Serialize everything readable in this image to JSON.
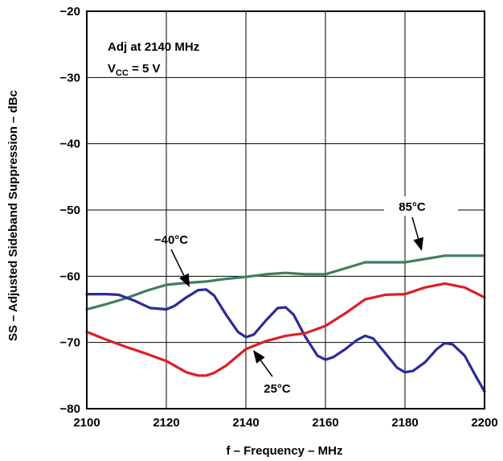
{
  "chart_data": {
    "type": "line",
    "xlabel": "f – Frequency – MHz",
    "ylabel": "SS – Adjusted Sideband Suppression – dBc",
    "xlim": [
      2100,
      2200
    ],
    "ylim": [
      -80,
      -20
    ],
    "x_ticks": [
      "2100",
      "2120",
      "2140",
      "2160",
      "2180",
      "2200"
    ],
    "y_ticks": [
      "−20",
      "−30",
      "−40",
      "−50",
      "−60",
      "−70",
      "−80"
    ],
    "grid": true,
    "annotation": {
      "line1": "Adj at 2140 MHz",
      "line2_prefix": "V",
      "line2_sub": "CC",
      "line2_suffix": " = 5 V"
    },
    "series": [
      {
        "name": "85°C",
        "color": "#3f7f5a",
        "x": [
          2100,
          2105,
          2110,
          2115,
          2120,
          2125,
          2130,
          2135,
          2140,
          2145,
          2150,
          2155,
          2160,
          2165,
          2170,
          2175,
          2180,
          2185,
          2190,
          2195,
          2200
        ],
        "y": [
          -65,
          -64.2,
          -63.3,
          -62.2,
          -61.3,
          -61,
          -60.8,
          -60.4,
          -60.1,
          -59.7,
          -59.5,
          -59.7,
          -59.7,
          -58.8,
          -57.9,
          -57.9,
          -57.9,
          -57.4,
          -56.9,
          -56.9,
          -56.9
        ]
      },
      {
        "name": "−40°C",
        "color": "#2b2b9a",
        "x": [
          2100,
          2105,
          2108,
          2112,
          2116,
          2120,
          2122,
          2125,
          2128,
          2130,
          2132,
          2135,
          2138,
          2140,
          2142,
          2145,
          2148,
          2150,
          2152,
          2155,
          2158,
          2160,
          2162,
          2165,
          2168,
          2170,
          2172,
          2175,
          2178,
          2180,
          2182,
          2185,
          2188,
          2190,
          2192,
          2195,
          2198,
          2200
        ],
        "y": [
          -62.7,
          -62.7,
          -62.8,
          -63.7,
          -64.8,
          -65,
          -64.5,
          -63.2,
          -62.1,
          -62,
          -62.9,
          -65.8,
          -68.4,
          -69.2,
          -68.8,
          -66.7,
          -64.8,
          -64.7,
          -65.8,
          -69.2,
          -72,
          -72.6,
          -72.2,
          -71,
          -69.6,
          -69,
          -69.4,
          -71.6,
          -73.8,
          -74.5,
          -74.3,
          -73,
          -71,
          -70.1,
          -70.3,
          -72,
          -75.3,
          -77.4
        ]
      },
      {
        "name": "25°C",
        "color": "#dd1f26",
        "x": [
          2100,
          2105,
          2110,
          2115,
          2120,
          2125,
          2128,
          2130,
          2132,
          2135,
          2140,
          2145,
          2150,
          2155,
          2160,
          2165,
          2170,
          2175,
          2180,
          2185,
          2190,
          2195,
          2200
        ],
        "y": [
          -68.4,
          -69.6,
          -70.7,
          -71.7,
          -72.8,
          -74.5,
          -75,
          -75,
          -74.6,
          -73.5,
          -71,
          -69.8,
          -69,
          -68.6,
          -67.5,
          -65.6,
          -63.5,
          -62.8,
          -62.7,
          -61.7,
          -61.1,
          -61.7,
          -63.2
        ]
      }
    ]
  }
}
